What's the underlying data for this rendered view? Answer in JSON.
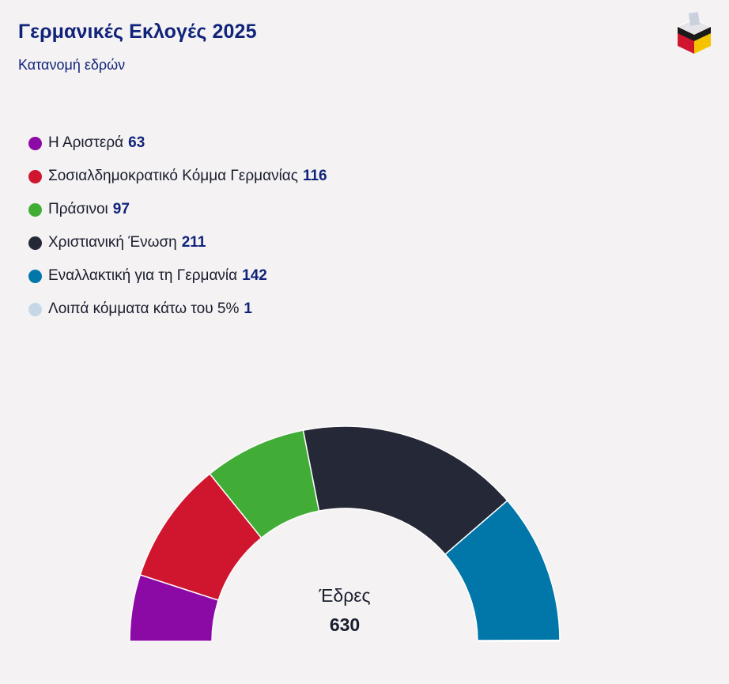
{
  "header": {
    "title": "Γερμανικές Εκλογές 2025",
    "subtitle": "Κατανομή εδρών"
  },
  "center": {
    "label": "Έδρες",
    "total": "630"
  },
  "chart_data": {
    "type": "semicircle-donut",
    "title": "Γερμανικές Εκλογές 2025",
    "subtitle": "Κατανομή εδρών",
    "legend_position": "top-left",
    "total": 630,
    "series": [
      {
        "name": "Η Αριστερά",
        "value": 63,
        "color": "#8b0aa5"
      },
      {
        "name": "Σοσιαλδημοκρατικό Κόμμα Γερμανίας",
        "value": 116,
        "color": "#d0162e"
      },
      {
        "name": "Πράσινοι",
        "value": 97,
        "color": "#41ad37"
      },
      {
        "name": "Χριστιανική Ένωση",
        "value": 211,
        "color": "#252836"
      },
      {
        "name": "Εναλλακτική για τη Γερμανία",
        "value": 142,
        "color": "#0077a8"
      },
      {
        "name": "Λοιπά κόμματα κάτω του 5%",
        "value": 1,
        "color": "#c6d8e7"
      }
    ]
  }
}
